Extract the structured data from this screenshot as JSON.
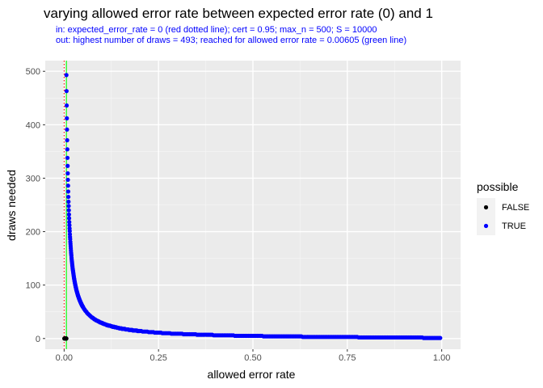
{
  "chart_data": {
    "type": "scatter",
    "title": "varying allowed error rate between expected error rate (0) and 1",
    "subtitle_lines": [
      "in: expected_error_rate = 0 (red dotted line); cert = 0.95; max_n = 500; S = 10000",
      "out: highest number of draws = 493; reached for allowed error rate = 0.00605 (green line)"
    ],
    "xlabel": "allowed error rate",
    "ylabel": "draws needed",
    "xlim": [
      -0.05,
      1.05
    ],
    "ylim": [
      -20,
      520
    ],
    "x_ticks": [
      0,
      0.25,
      0.5,
      0.75,
      1
    ],
    "x_tick_labels": [
      "0.00",
      "0.25",
      "0.50",
      "0.75",
      "1.00"
    ],
    "y_ticks": [
      0,
      100,
      200,
      300,
      400,
      500
    ],
    "y_tick_labels": [
      "0",
      "100",
      "200",
      "300",
      "400",
      "500"
    ],
    "grid": true,
    "background": "#ebebeb",
    "vlines": [
      {
        "x": 0,
        "color": "#ff0000",
        "style": "dotted"
      },
      {
        "x": 0.00605,
        "color": "#00ff00",
        "style": "solid"
      }
    ],
    "legend": {
      "title": "possible",
      "position": "right",
      "entries": [
        {
          "label": "FALSE",
          "color": "#000000"
        },
        {
          "label": "TRUE",
          "color": "#0000ff"
        }
      ]
    },
    "series": [
      {
        "name": "FALSE",
        "color": "#000000",
        "x": [
          0.0005,
          0.001,
          0.0015,
          0.002,
          0.0025,
          0.003,
          0.0035,
          0.004,
          0.0045,
          0.005,
          0.0055,
          0.006
        ],
        "y": [
          0,
          0,
          0,
          0,
          0,
          0,
          0,
          0,
          0,
          0,
          0,
          0
        ]
      },
      {
        "name": "TRUE",
        "color": "#0000ff",
        "curve": "y = ln(1 - cert) / ln(1 - x), x from 0.00605 to 1",
        "x_start": 0.00605,
        "x_end": 1,
        "y_max": 493
      }
    ]
  }
}
